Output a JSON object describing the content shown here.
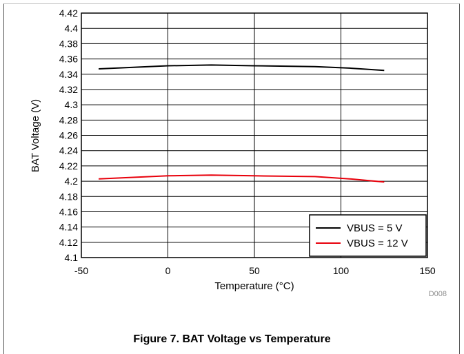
{
  "chart_data": {
    "type": "line",
    "xlabel": "Temperature (°C)",
    "ylabel": "BAT Voltage (V)",
    "xlim": [
      -50,
      150
    ],
    "ylim": [
      4.1,
      4.42
    ],
    "x_ticks": [
      "-50",
      "0",
      "50",
      "100",
      "150"
    ],
    "y_ticks": [
      "4.1",
      "4.12",
      "4.14",
      "4.16",
      "4.18",
      "4.2",
      "4.22",
      "4.24",
      "4.26",
      "4.28",
      "4.3",
      "4.32",
      "4.34",
      "4.36",
      "4.38",
      "4.4",
      "4.42"
    ],
    "grid": true,
    "legend_position": "bottom-right",
    "series": [
      {
        "name": "VBUS = 5 V",
        "color": "#000000",
        "x": [
          -40,
          0,
          25,
          50,
          85,
          105,
          125
        ],
        "y": [
          4.347,
          4.351,
          4.352,
          4.351,
          4.35,
          4.348,
          4.345
        ]
      },
      {
        "name": "VBUS = 12 V",
        "color": "#e8000b",
        "x": [
          -40,
          0,
          25,
          50,
          85,
          105,
          125
        ],
        "y": [
          4.203,
          4.207,
          4.208,
          4.207,
          4.206,
          4.203,
          4.199
        ]
      }
    ]
  },
  "figure_code": "D008",
  "caption": "Figure 7. BAT Voltage vs Temperature"
}
